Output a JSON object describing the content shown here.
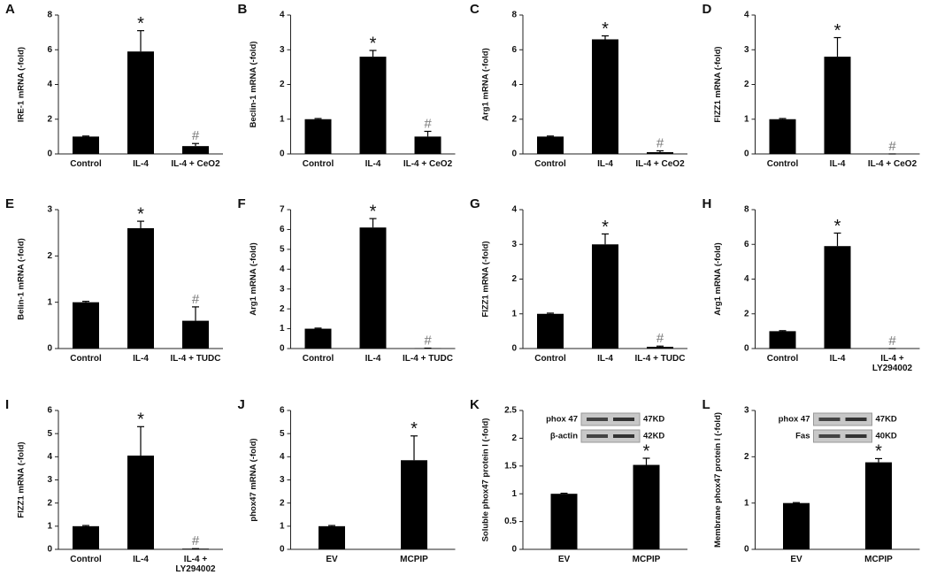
{
  "chart_data": [
    {
      "type": "bar",
      "panel": "A",
      "ylabel": "IRE-1 mRNA (-fold)",
      "categories": [
        "Control",
        "IL-4",
        "IL-4 + CeO2"
      ],
      "values": [
        1,
        5.9,
        0.45
      ],
      "errors": [
        0.03,
        1.2,
        0.15
      ],
      "marks": [
        null,
        "*",
        "#"
      ],
      "ylim": [
        0,
        8
      ],
      "yticks": [
        0,
        2,
        4,
        6,
        8
      ],
      "color": "#000000"
    },
    {
      "type": "bar",
      "panel": "B",
      "ylabel": "Beclin-1 mRNA (-fold)",
      "categories": [
        "Control",
        "IL-4",
        "IL-4 + CeO2"
      ],
      "values": [
        1,
        2.8,
        0.5
      ],
      "errors": [
        0.02,
        0.18,
        0.15
      ],
      "marks": [
        null,
        "*",
        "#"
      ],
      "ylim": [
        0,
        4
      ],
      "yticks": [
        0,
        1,
        2,
        3,
        4
      ],
      "color": "#000000"
    },
    {
      "type": "bar",
      "panel": "C",
      "ylabel": "Arg1 mRNA (-fold)",
      "categories": [
        "Control",
        "IL-4",
        "IL-4 + CeO2"
      ],
      "values": [
        1,
        6.6,
        0.1
      ],
      "errors": [
        0.03,
        0.2,
        0.08
      ],
      "marks": [
        null,
        "*",
        "#"
      ],
      "ylim": [
        0,
        8
      ],
      "yticks": [
        0,
        2,
        4,
        6,
        8
      ],
      "color": "#000000"
    },
    {
      "type": "bar",
      "panel": "D",
      "ylabel": "FIZZ1 mRNA (-fold)",
      "categories": [
        "Control",
        "IL-4",
        "IL-4 + CeO2"
      ],
      "values": [
        1,
        2.8,
        0
      ],
      "errors": [
        0.02,
        0.55,
        0
      ],
      "marks": [
        null,
        "*",
        "#"
      ],
      "ylim": [
        0,
        4
      ],
      "yticks": [
        0,
        1,
        2,
        3,
        4
      ],
      "color": "#000000"
    },
    {
      "type": "bar",
      "panel": "E",
      "ylabel": "Belin-1 mRNA (-fold)",
      "categories": [
        "Control",
        "IL-4",
        "IL-4 + TUDC"
      ],
      "values": [
        1,
        2.6,
        0.6
      ],
      "errors": [
        0.02,
        0.15,
        0.3
      ],
      "marks": [
        null,
        "*",
        "#"
      ],
      "ylim": [
        0,
        3
      ],
      "yticks": [
        0,
        1,
        2,
        3
      ],
      "color": "#000000"
    },
    {
      "type": "bar",
      "panel": "F",
      "ylabel": "Arg1 mRNA (-fold)",
      "categories": [
        "Control",
        "IL-4",
        "IL-4 + TUDC"
      ],
      "values": [
        1,
        6.1,
        0.02
      ],
      "errors": [
        0.03,
        0.45,
        0
      ],
      "marks": [
        null,
        "*",
        "#"
      ],
      "ylim": [
        0,
        7
      ],
      "yticks": [
        0,
        1,
        2,
        3,
        4,
        5,
        6,
        7
      ],
      "color": "#000000"
    },
    {
      "type": "bar",
      "panel": "G",
      "ylabel": "FIZZ1 mRNA (-fold)",
      "categories": [
        "Control",
        "IL-4",
        "IL-4 + TUDC"
      ],
      "values": [
        1,
        3,
        0.05
      ],
      "errors": [
        0.02,
        0.3,
        0.02
      ],
      "marks": [
        null,
        "*",
        "#"
      ],
      "ylim": [
        0,
        4
      ],
      "yticks": [
        0,
        1,
        2,
        3,
        4
      ],
      "color": "#000000"
    },
    {
      "type": "bar",
      "panel": "H",
      "ylabel": "Arg1 mRNA (-fold)",
      "categories": [
        "Control",
        "IL-4",
        "IL-4 + LY294002"
      ],
      "values": [
        1,
        5.9,
        0
      ],
      "errors": [
        0.03,
        0.75,
        0
      ],
      "marks": [
        null,
        "*",
        "#"
      ],
      "ylim": [
        0,
        8
      ],
      "yticks": [
        0,
        2,
        4,
        6,
        8
      ],
      "color": "#000000"
    },
    {
      "type": "bar",
      "panel": "I",
      "ylabel": "FIZZ1 mRNA (-fold)",
      "categories": [
        "Control",
        "IL-4",
        "IL-4 + LY294002"
      ],
      "values": [
        1,
        4.05,
        0.03
      ],
      "errors": [
        0.03,
        1.25,
        0
      ],
      "marks": [
        null,
        "*",
        "#"
      ],
      "ylim": [
        0,
        6
      ],
      "yticks": [
        0,
        1,
        2,
        3,
        4,
        5,
        6
      ],
      "color": "#000000"
    },
    {
      "type": "bar",
      "panel": "J",
      "ylabel": "phox47 mRNA (-fold)",
      "categories": [
        "EV",
        "MCPIP"
      ],
      "values": [
        1,
        3.85
      ],
      "errors": [
        0.03,
        1.05
      ],
      "marks": [
        null,
        "*"
      ],
      "ylim": [
        0,
        6
      ],
      "yticks": [
        0,
        1,
        2,
        3,
        4,
        5,
        6
      ],
      "color": "#000000"
    },
    {
      "type": "bar",
      "panel": "K",
      "ylabel": "Soluble phox47 protein l (-fold)",
      "categories": [
        "EV",
        "MCPIP"
      ],
      "values": [
        1,
        1.52
      ],
      "errors": [
        0.01,
        0.12
      ],
      "marks": [
        null,
        "*"
      ],
      "ylim": [
        0,
        2.5
      ],
      "yticks": [
        0,
        0.5,
        1,
        1.5,
        2,
        2.5
      ],
      "color": "#000000",
      "blot": [
        {
          "label": "phox 47",
          "size": "47KD"
        },
        {
          "label": "β-actin",
          "size": "42KD"
        }
      ]
    },
    {
      "type": "bar",
      "panel": "L",
      "ylabel": "Membrane phox47 protein l (-fold)",
      "categories": [
        "EV",
        "MCPIP"
      ],
      "values": [
        1,
        1.88
      ],
      "errors": [
        0.01,
        0.08
      ],
      "marks": [
        null,
        "*"
      ],
      "ylim": [
        0,
        3
      ],
      "yticks": [
        0,
        1,
        2,
        3
      ],
      "color": "#000000",
      "blot": [
        {
          "label": "phox 47",
          "size": "47KD"
        },
        {
          "label": "Fas",
          "size": "40KD"
        }
      ]
    }
  ]
}
